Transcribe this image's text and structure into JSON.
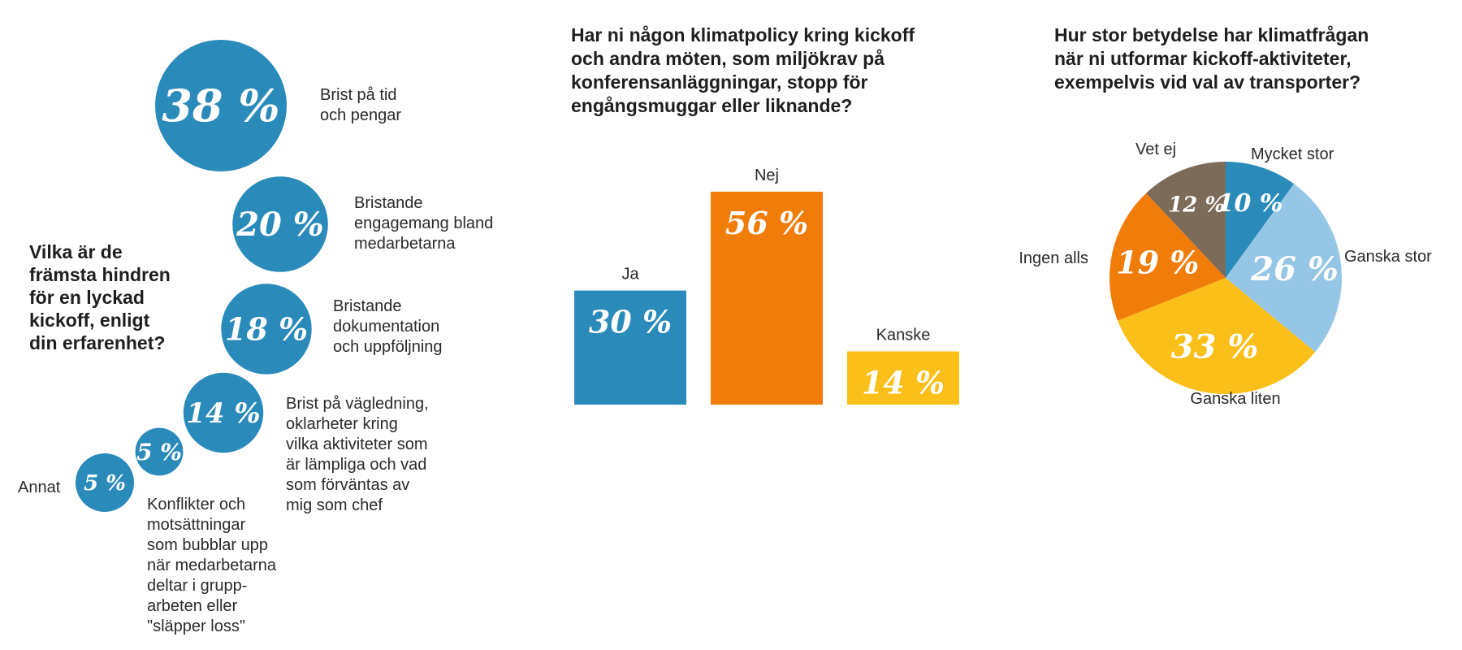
{
  "colors": {
    "bubble": "#2a8ab9",
    "blue": "#2a8ab9",
    "light_blue": "#96c6e5",
    "orange": "#f07d0a",
    "yellow": "#fbbf1a",
    "brown": "#7d6b5a"
  },
  "chart_data": [
    {
      "type": "bubble",
      "title_lines": [
        "Vilka är de",
        "främsta hindren",
        "för en lyckad",
        "kickoff, enligt",
        "din erfarenhet?"
      ],
      "items": [
        {
          "value": 38,
          "value_label": "38 %",
          "label_lines": [
            "Brist på tid",
            "och pengar"
          ]
        },
        {
          "value": 20,
          "value_label": "20 %",
          "label_lines": [
            "Bristande",
            "engagemang bland",
            "medarbetarna"
          ]
        },
        {
          "value": 18,
          "value_label": "18 %",
          "label_lines": [
            "Bristande",
            "dokumentation",
            "och uppföljning"
          ]
        },
        {
          "value": 14,
          "value_label": "14 %",
          "label_lines": [
            "Brist på vägledning,",
            "oklarheter kring",
            "vilka aktiviteter som",
            "är lämpliga och vad",
            "som förväntas av",
            "mig som chef"
          ]
        },
        {
          "value": 5,
          "value_label": "5 %",
          "label_lines": [
            "Konflikter och",
            "motsättningar",
            "som bubblar upp",
            "när medarbetarna",
            "deltar i grupp-",
            "arbeten eller",
            "\"släpper loss\""
          ]
        },
        {
          "value": 5,
          "value_label": "5 %",
          "label_lines": [
            "Annat"
          ]
        }
      ]
    },
    {
      "type": "bar",
      "title_lines": [
        "Har ni någon klimatpolicy kring kickoff",
        "och andra möten, som miljökrav på",
        "konferensanläggningar, stopp för",
        "engångsmuggar eller liknande?"
      ],
      "categories": [
        "Ja",
        "Nej",
        "Kanske"
      ],
      "values": [
        30,
        56,
        14
      ],
      "value_labels": [
        "30 %",
        "56 %",
        "14 %"
      ],
      "colors": [
        "#2a8ab9",
        "#f07d0a",
        "#fbbf1a"
      ]
    },
    {
      "type": "pie",
      "title_lines": [
        "Hur stor betydelse har klimatfrågan",
        "när ni utformar kickoff-aktiviteter,",
        "exempelvis vid val av transporter?"
      ],
      "slices": [
        {
          "label": "Mycket stor",
          "value": 10,
          "value_label": "10 %",
          "color": "#2a8ab9"
        },
        {
          "label": "Ganska stor",
          "value": 26,
          "value_label": "26 %",
          "color": "#96c6e5"
        },
        {
          "label": "Ganska liten",
          "value": 33,
          "value_label": "33 %",
          "color": "#fbbf1a"
        },
        {
          "label": "Ingen alls",
          "value": 19,
          "value_label": "19 %",
          "color": "#f07d0a"
        },
        {
          "label": "Vet ej",
          "value": 12,
          "value_label": "12 %",
          "color": "#7d6b5a"
        }
      ]
    }
  ]
}
